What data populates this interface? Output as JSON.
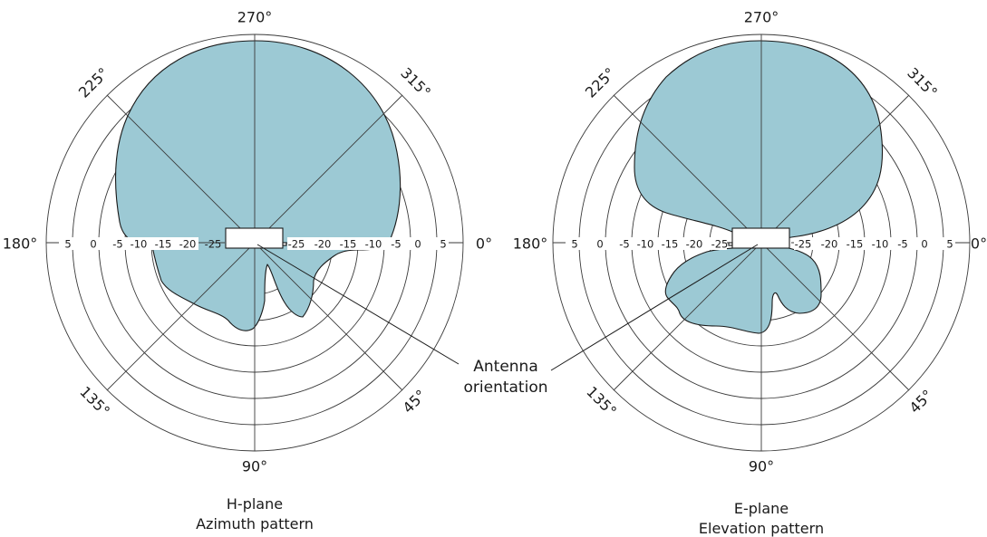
{
  "tick_labels": [
    "5",
    "0",
    "-5",
    "-10",
    "-15",
    "-20",
    "-25"
  ],
  "angle_labels": {
    "a0": "0°",
    "a45": "45°",
    "a90": "90°",
    "a135": "135°",
    "a180": "180°",
    "a225": "225°",
    "a270": "270°",
    "a315": "315°"
  },
  "left_plot": {
    "caption_line1": "H-plane",
    "caption_line2": "Azimuth pattern"
  },
  "right_plot": {
    "caption_line1": "E-plane",
    "caption_line2": "Elevation pattern"
  },
  "callout": {
    "line1": "Antenna",
    "line2": "orientation"
  },
  "colors": {
    "lobe_fill": "#9cc9d4",
    "grid": "#3a3a3a",
    "outline": "#1a1a1a"
  }
}
